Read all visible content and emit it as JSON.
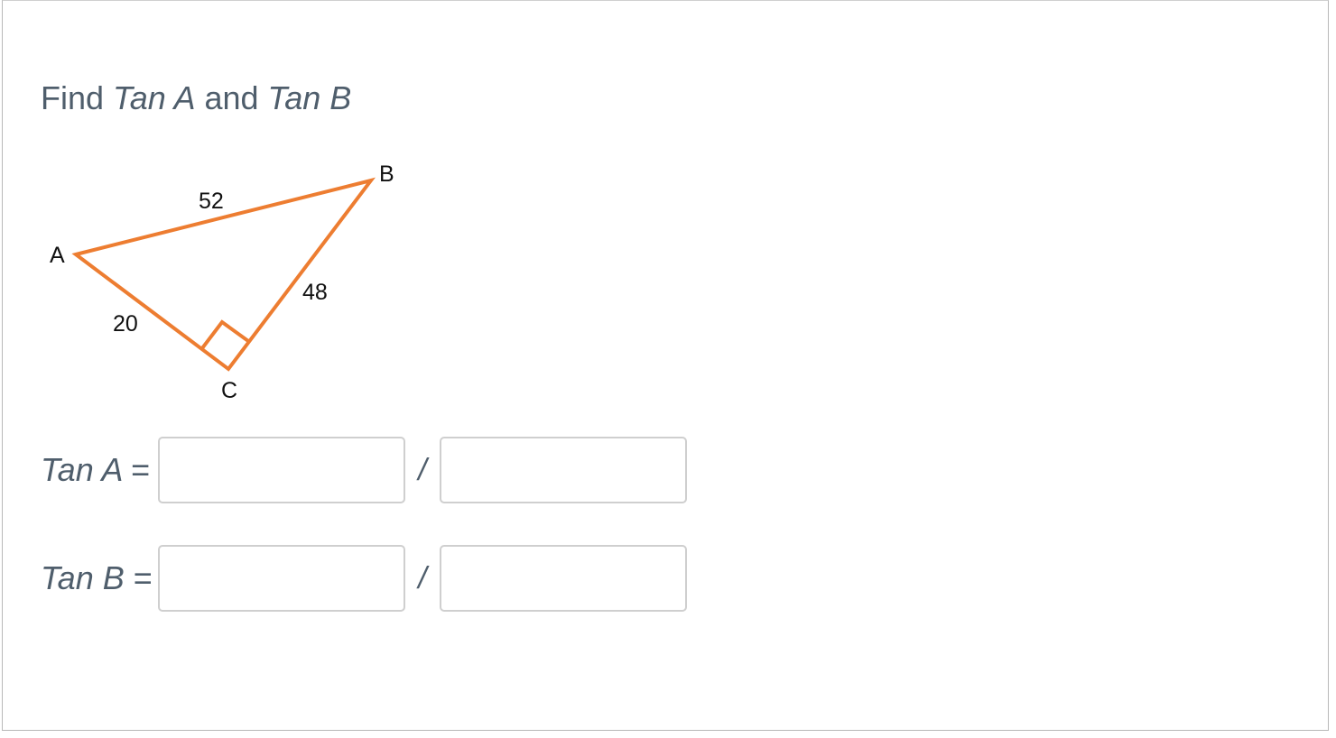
{
  "question": {
    "prefix": "Find ",
    "term_a": "Tan A",
    "middle": " and ",
    "term_b": "Tan B"
  },
  "diagram": {
    "vertices": {
      "a": "A",
      "b": "B",
      "c": "C"
    },
    "sides": {
      "ab": "52",
      "bc": "48",
      "ac": "20"
    },
    "stroke_color": "#ed7d31",
    "right_angle_at": "C"
  },
  "answers": [
    {
      "label": "Tan A",
      "equals": "=",
      "separator": "/",
      "numerator": "",
      "denominator": ""
    },
    {
      "label": "Tan B",
      "equals": "=",
      "separator": "/",
      "numerator": "",
      "denominator": ""
    }
  ]
}
